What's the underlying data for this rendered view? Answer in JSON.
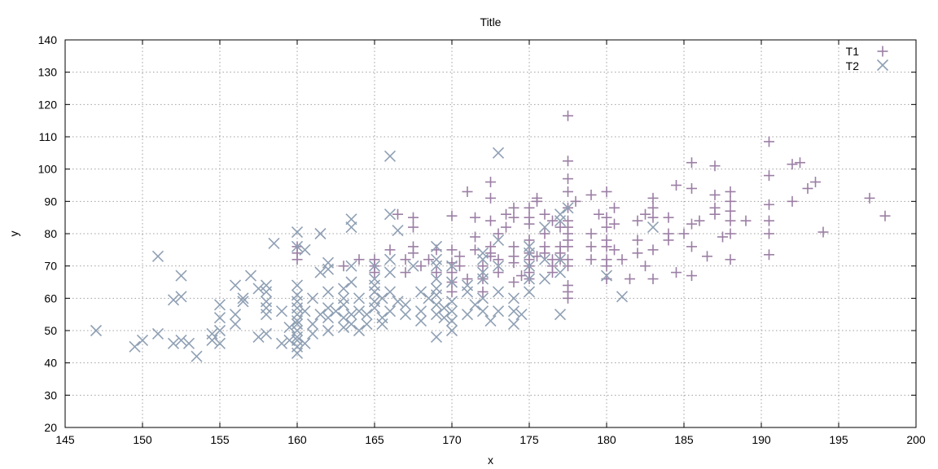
{
  "chart_data": {
    "type": "scatter",
    "title": "Title",
    "xlabel": "x",
    "ylabel": "y",
    "xlim": [
      145,
      200
    ],
    "ylim": [
      20,
      140
    ],
    "xticks": [
      145,
      150,
      155,
      160,
      165,
      170,
      175,
      180,
      185,
      190,
      195,
      200
    ],
    "yticks": [
      20,
      30,
      40,
      50,
      60,
      70,
      80,
      90,
      100,
      110,
      120,
      130,
      140
    ],
    "grid": true,
    "legend_position": "top-right",
    "series": [
      {
        "name": "T1",
        "marker": "plus",
        "color": "#9b7ea4",
        "points": [
          [
            160,
            72
          ],
          [
            160,
            74
          ],
          [
            160,
            76
          ],
          [
            163,
            70
          ],
          [
            164,
            72
          ],
          [
            165,
            68
          ],
          [
            165,
            70
          ],
          [
            165,
            72
          ],
          [
            166,
            75
          ],
          [
            166.5,
            86
          ],
          [
            167,
            68
          ],
          [
            167,
            72
          ],
          [
            167.5,
            74
          ],
          [
            167.5,
            76
          ],
          [
            167.5,
            82
          ],
          [
            167.5,
            85
          ],
          [
            168,
            70
          ],
          [
            168.5,
            72
          ],
          [
            169,
            68
          ],
          [
            169,
            75
          ],
          [
            170,
            62
          ],
          [
            170,
            65
          ],
          [
            170,
            68
          ],
          [
            170,
            71
          ],
          [
            170,
            75
          ],
          [
            170,
            85.5
          ],
          [
            170.5,
            70
          ],
          [
            170.5,
            73
          ],
          [
            171,
            93
          ],
          [
            171,
            66
          ],
          [
            171.5,
            75
          ],
          [
            171.5,
            79
          ],
          [
            171.5,
            85
          ],
          [
            172,
            66
          ],
          [
            172,
            70
          ],
          [
            172,
            62
          ],
          [
            172.5,
            76
          ],
          [
            172.5,
            73
          ],
          [
            172.5,
            74
          ],
          [
            172.5,
            84
          ],
          [
            172.5,
            91
          ],
          [
            172.5,
            96
          ],
          [
            173,
            68
          ],
          [
            173,
            72
          ],
          [
            173,
            80
          ],
          [
            173.5,
            82
          ],
          [
            173.5,
            86
          ],
          [
            174,
            76
          ],
          [
            174,
            71
          ],
          [
            174,
            73
          ],
          [
            174,
            88
          ],
          [
            174,
            85
          ],
          [
            174,
            65
          ],
          [
            174.5,
            67
          ],
          [
            175,
            66
          ],
          [
            175,
            68
          ],
          [
            175,
            70
          ],
          [
            175,
            72
          ],
          [
            175,
            74
          ],
          [
            175,
            78
          ],
          [
            175,
            83
          ],
          [
            175,
            85
          ],
          [
            175,
            88
          ],
          [
            175.5,
            90
          ],
          [
            175.5,
            91
          ],
          [
            175.5,
            73
          ],
          [
            176,
            74
          ],
          [
            176,
            76
          ],
          [
            176,
            80
          ],
          [
            176,
            86
          ],
          [
            176.5,
            68
          ],
          [
            176.5,
            70
          ],
          [
            176.5,
            72
          ],
          [
            176.5,
            84
          ],
          [
            177,
            72
          ],
          [
            177,
            74
          ],
          [
            177,
            76
          ],
          [
            177,
            82
          ],
          [
            177.5,
            60
          ],
          [
            177.5,
            62
          ],
          [
            177.5,
            64
          ],
          [
            177.5,
            70
          ],
          [
            177.5,
            72
          ],
          [
            177.5,
            76
          ],
          [
            177.5,
            78
          ],
          [
            177.5,
            80
          ],
          [
            177.5,
            82
          ],
          [
            177.5,
            84
          ],
          [
            177.5,
            88
          ],
          [
            177.5,
            93
          ],
          [
            177.5,
            97
          ],
          [
            177.5,
            102.5
          ],
          [
            177.5,
            116.5
          ],
          [
            178,
            90
          ],
          [
            179,
            72
          ],
          [
            179,
            76
          ],
          [
            179,
            80
          ],
          [
            179,
            92
          ],
          [
            179.5,
            86
          ],
          [
            180,
            66
          ],
          [
            180,
            70
          ],
          [
            180,
            72
          ],
          [
            180,
            76
          ],
          [
            180,
            78
          ],
          [
            180,
            82
          ],
          [
            180,
            85
          ],
          [
            180,
            93
          ],
          [
            180.5,
            75
          ],
          [
            180.5,
            83
          ],
          [
            180.5,
            88
          ],
          [
            181,
            72
          ],
          [
            181.5,
            66
          ],
          [
            182,
            74
          ],
          [
            182,
            78
          ],
          [
            182,
            84
          ],
          [
            182.5,
            70
          ],
          [
            182.5,
            86
          ],
          [
            183,
            66
          ],
          [
            183,
            75
          ],
          [
            183,
            85
          ],
          [
            183,
            88
          ],
          [
            183,
            91
          ],
          [
            184,
            78
          ],
          [
            184,
            80
          ],
          [
            184,
            85
          ],
          [
            184.5,
            68
          ],
          [
            184.5,
            95
          ],
          [
            185,
            80
          ],
          [
            185.5,
            67
          ],
          [
            185.5,
            76
          ],
          [
            185.5,
            83
          ],
          [
            185.5,
            94
          ],
          [
            185.5,
            102
          ],
          [
            186,
            84
          ],
          [
            186.5,
            73
          ],
          [
            187,
            86
          ],
          [
            187,
            88
          ],
          [
            187,
            92
          ],
          [
            187,
            101
          ],
          [
            187.5,
            79
          ],
          [
            188,
            72
          ],
          [
            188,
            80
          ],
          [
            188,
            84
          ],
          [
            188,
            87
          ],
          [
            188,
            90
          ],
          [
            188,
            93
          ],
          [
            189,
            84
          ],
          [
            190.5,
            73.5
          ],
          [
            190.5,
            80
          ],
          [
            190.5,
            84
          ],
          [
            190.5,
            89
          ],
          [
            190.5,
            98
          ],
          [
            190.5,
            108.5
          ],
          [
            192,
            90
          ],
          [
            192,
            101.5
          ],
          [
            192.5,
            102
          ],
          [
            193,
            94
          ],
          [
            193.5,
            96
          ],
          [
            194,
            80.5
          ],
          [
            197,
            91
          ],
          [
            198,
            85.5
          ]
        ]
      },
      {
        "name": "T2",
        "marker": "x",
        "color": "#8fa0b4",
        "points": [
          [
            147,
            50
          ],
          [
            149.5,
            45
          ],
          [
            150,
            47
          ],
          [
            151,
            49
          ],
          [
            151,
            73
          ],
          [
            152,
            46
          ],
          [
            152,
            59.5
          ],
          [
            152.5,
            60.5
          ],
          [
            152.5,
            67
          ],
          [
            152.5,
            47
          ],
          [
            153,
            46
          ],
          [
            153.5,
            42
          ],
          [
            154.5,
            47
          ],
          [
            154.5,
            49
          ],
          [
            155,
            46
          ],
          [
            155,
            50
          ],
          [
            155,
            54
          ],
          [
            155,
            58
          ],
          [
            156,
            52
          ],
          [
            156,
            55
          ],
          [
            156,
            64
          ],
          [
            156.5,
            59
          ],
          [
            156.5,
            60
          ],
          [
            157,
            67
          ],
          [
            157.5,
            63
          ],
          [
            157.5,
            48
          ],
          [
            158,
            49
          ],
          [
            158,
            55
          ],
          [
            158,
            57
          ],
          [
            158,
            62
          ],
          [
            158,
            64
          ],
          [
            158.5,
            77
          ],
          [
            158,
            59
          ],
          [
            159,
            56
          ],
          [
            159.5,
            47
          ],
          [
            159.5,
            51
          ],
          [
            159,
            46
          ],
          [
            160,
            43
          ],
          [
            160,
            45
          ],
          [
            160,
            47
          ],
          [
            160,
            48
          ],
          [
            160,
            50
          ],
          [
            160,
            52
          ],
          [
            160,
            53
          ],
          [
            160,
            55
          ],
          [
            160,
            57
          ],
          [
            160,
            59
          ],
          [
            160,
            61
          ],
          [
            160,
            64
          ],
          [
            160,
            76
          ],
          [
            160,
            80.5
          ],
          [
            160.5,
            46
          ],
          [
            160.5,
            56
          ],
          [
            160.5,
            75
          ],
          [
            161,
            49
          ],
          [
            161,
            52
          ],
          [
            161,
            60
          ],
          [
            161.5,
            55
          ],
          [
            161.5,
            68
          ],
          [
            161.5,
            80
          ],
          [
            162,
            50
          ],
          [
            162,
            54
          ],
          [
            162,
            57
          ],
          [
            162,
            62
          ],
          [
            162,
            69
          ],
          [
            162,
            71
          ],
          [
            162.5,
            56
          ],
          [
            163,
            51
          ],
          [
            163,
            54
          ],
          [
            163,
            58
          ],
          [
            163,
            60
          ],
          [
            163,
            63
          ],
          [
            163.5,
            52
          ],
          [
            163.5,
            55
          ],
          [
            163.5,
            65
          ],
          [
            163.5,
            70
          ],
          [
            163.5,
            82
          ],
          [
            163.5,
            84.5
          ],
          [
            164,
            50
          ],
          [
            164,
            56
          ],
          [
            164,
            60
          ],
          [
            164.5,
            52
          ],
          [
            164.5,
            55
          ],
          [
            165,
            57
          ],
          [
            165,
            59
          ],
          [
            165,
            62
          ],
          [
            165,
            64
          ],
          [
            165,
            70
          ],
          [
            165.5,
            52
          ],
          [
            165.5,
            54
          ],
          [
            165.5,
            60
          ],
          [
            165,
            66
          ],
          [
            166,
            56
          ],
          [
            166,
            62
          ],
          [
            166,
            68
          ],
          [
            166,
            72
          ],
          [
            166,
            86
          ],
          [
            166,
            104
          ],
          [
            166.5,
            59
          ],
          [
            166.5,
            81
          ],
          [
            167,
            55
          ],
          [
            167,
            58
          ],
          [
            167.5,
            70
          ],
          [
            168,
            53
          ],
          [
            168,
            56
          ],
          [
            168,
            62
          ],
          [
            168.5,
            60
          ],
          [
            169,
            48
          ],
          [
            169,
            55
          ],
          [
            169,
            58
          ],
          [
            169,
            61
          ],
          [
            169,
            63
          ],
          [
            169,
            66
          ],
          [
            169,
            70
          ],
          [
            169,
            72
          ],
          [
            169,
            76
          ],
          [
            169.5,
            54
          ],
          [
            169.5,
            57
          ],
          [
            170,
            50
          ],
          [
            170,
            53
          ],
          [
            170,
            56
          ],
          [
            170,
            59
          ],
          [
            170,
            65
          ],
          [
            170,
            70
          ],
          [
            171,
            55
          ],
          [
            171,
            62
          ],
          [
            171,
            64
          ],
          [
            171.5,
            58
          ],
          [
            172,
            56
          ],
          [
            172,
            60
          ],
          [
            172,
            66
          ],
          [
            172,
            68
          ],
          [
            172,
            72
          ],
          [
            172,
            74
          ],
          [
            172.5,
            53
          ],
          [
            173,
            56
          ],
          [
            173,
            62
          ],
          [
            173,
            70
          ],
          [
            173,
            78
          ],
          [
            173,
            105
          ],
          [
            174,
            52
          ],
          [
            174,
            56
          ],
          [
            174,
            60
          ],
          [
            174.5,
            55
          ],
          [
            175,
            62
          ],
          [
            175,
            66
          ],
          [
            175,
            70
          ],
          [
            175,
            74
          ],
          [
            175,
            76
          ],
          [
            176,
            66
          ],
          [
            176,
            72
          ],
          [
            176,
            82
          ],
          [
            177,
            55
          ],
          [
            177,
            68
          ],
          [
            177,
            72
          ],
          [
            177,
            84
          ],
          [
            177,
            86
          ],
          [
            177.5,
            88
          ],
          [
            180,
            67
          ],
          [
            181,
            60.5
          ],
          [
            183,
            82
          ]
        ]
      }
    ]
  }
}
